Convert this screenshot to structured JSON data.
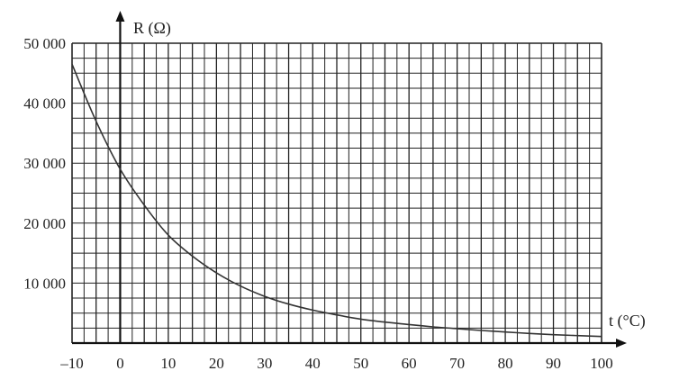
{
  "chart_data": {
    "type": "line",
    "title": "",
    "xlabel": "t (°C)",
    "ylabel": "R (Ω)",
    "xlim": [
      -10,
      100
    ],
    "ylim": [
      0,
      50000
    ],
    "grid": true,
    "x_ticks": [
      -10,
      0,
      10,
      20,
      30,
      40,
      50,
      60,
      70,
      80,
      90,
      100
    ],
    "x_tick_labels": [
      "–10",
      "0",
      "10",
      "20",
      "30",
      "40",
      "50",
      "60",
      "70",
      "80",
      "90",
      "100"
    ],
    "y_ticks": [
      10000,
      20000,
      30000,
      40000,
      50000
    ],
    "y_tick_labels": [
      "10 000",
      "20 000",
      "30 000",
      "40 000",
      "50 000"
    ],
    "grid_step": {
      "x": 2.5,
      "y": 2500
    },
    "series": [
      {
        "color": "#333333",
        "points": [
          [
            -10,
            46500
          ],
          [
            -5,
            37000
          ],
          [
            0,
            29000
          ],
          [
            5,
            23000
          ],
          [
            10,
            18000
          ],
          [
            15,
            14500
          ],
          [
            20,
            11700
          ],
          [
            25,
            9500
          ],
          [
            30,
            7800
          ],
          [
            35,
            6500
          ],
          [
            40,
            5500
          ],
          [
            45,
            4700
          ],
          [
            50,
            4000
          ],
          [
            55,
            3500
          ],
          [
            60,
            3100
          ],
          [
            65,
            2700
          ],
          [
            70,
            2400
          ],
          [
            75,
            2100
          ],
          [
            80,
            1850
          ],
          [
            85,
            1600
          ],
          [
            90,
            1400
          ],
          [
            95,
            1250
          ],
          [
            100,
            1100
          ]
        ]
      }
    ]
  }
}
